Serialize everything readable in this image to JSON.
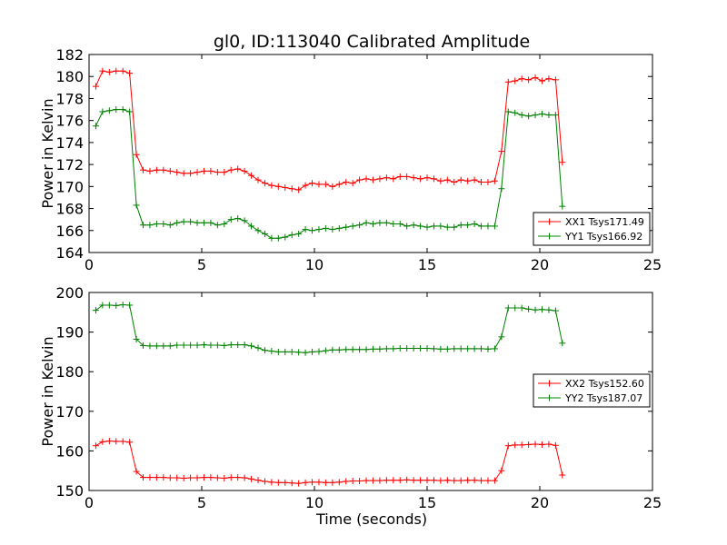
{
  "figure": {
    "title": "gl0, ID:113040 Calibrated Amplitude",
    "xlabel": "Time (seconds)"
  },
  "chart_data": [
    {
      "type": "line",
      "title": "gl0, ID:113040 Calibrated Amplitude",
      "xlabel": "",
      "ylabel": "Power in Kelvin",
      "xlim": [
        0,
        25
      ],
      "ylim": [
        164,
        182
      ],
      "xticks": [
        0,
        5,
        10,
        15,
        20,
        25
      ],
      "yticks": [
        164,
        166,
        168,
        170,
        172,
        174,
        176,
        178,
        180,
        182
      ],
      "grid": false,
      "legend_position": "lower-right",
      "series": [
        {
          "name": "XX1 Tsys171.49",
          "color": "#ff0000",
          "marker": "plus",
          "x": [
            0.3,
            0.6,
            0.9,
            1.2,
            1.5,
            1.8,
            2.1,
            2.4,
            2.7,
            3.0,
            3.3,
            3.6,
            3.9,
            4.2,
            4.5,
            4.8,
            5.1,
            5.4,
            5.7,
            6.0,
            6.3,
            6.6,
            6.9,
            7.2,
            7.5,
            7.8,
            8.1,
            8.4,
            8.7,
            9.0,
            9.3,
            9.6,
            9.9,
            10.2,
            10.5,
            10.8,
            11.1,
            11.4,
            11.7,
            12.0,
            12.3,
            12.6,
            12.9,
            13.2,
            13.5,
            13.8,
            14.1,
            14.4,
            14.7,
            15.0,
            15.3,
            15.6,
            15.9,
            16.2,
            16.5,
            16.8,
            17.1,
            17.4,
            17.7,
            18.0,
            18.3,
            18.6,
            18.9,
            19.2,
            19.5,
            19.8,
            20.1,
            20.4,
            20.7,
            21.0
          ],
          "y": [
            179.1,
            180.5,
            180.4,
            180.5,
            180.5,
            180.3,
            172.9,
            171.5,
            171.4,
            171.5,
            171.5,
            171.4,
            171.3,
            171.2,
            171.2,
            171.3,
            171.4,
            171.4,
            171.3,
            171.3,
            171.5,
            171.6,
            171.4,
            171.0,
            170.6,
            170.3,
            170.1,
            170.0,
            169.9,
            169.8,
            169.7,
            170.1,
            170.3,
            170.2,
            170.2,
            170.0,
            170.2,
            170.4,
            170.3,
            170.6,
            170.7,
            170.6,
            170.7,
            170.8,
            170.7,
            170.9,
            170.9,
            170.8,
            170.7,
            170.8,
            170.7,
            170.5,
            170.6,
            170.4,
            170.6,
            170.5,
            170.6,
            170.4,
            170.4,
            170.5,
            173.2,
            179.5,
            179.6,
            179.8,
            179.7,
            179.9,
            179.6,
            179.8,
            179.7,
            172.2
          ]
        },
        {
          "name": "YY1 Tsys166.92",
          "color": "#008000",
          "marker": "plus",
          "x": [
            0.3,
            0.6,
            0.9,
            1.2,
            1.5,
            1.8,
            2.1,
            2.4,
            2.7,
            3.0,
            3.3,
            3.6,
            3.9,
            4.2,
            4.5,
            4.8,
            5.1,
            5.4,
            5.7,
            6.0,
            6.3,
            6.6,
            6.9,
            7.2,
            7.5,
            7.8,
            8.1,
            8.4,
            8.7,
            9.0,
            9.3,
            9.6,
            9.9,
            10.2,
            10.5,
            10.8,
            11.1,
            11.4,
            11.7,
            12.0,
            12.3,
            12.6,
            12.9,
            13.2,
            13.5,
            13.8,
            14.1,
            14.4,
            14.7,
            15.0,
            15.3,
            15.6,
            15.9,
            16.2,
            16.5,
            16.8,
            17.1,
            17.4,
            17.7,
            18.0,
            18.3,
            18.6,
            18.9,
            19.2,
            19.5,
            19.8,
            20.1,
            20.4,
            20.7,
            21.0
          ],
          "y": [
            175.5,
            176.8,
            176.9,
            177.0,
            177.0,
            176.8,
            168.3,
            166.5,
            166.5,
            166.6,
            166.6,
            166.5,
            166.7,
            166.8,
            166.8,
            166.7,
            166.7,
            166.7,
            166.5,
            166.6,
            167.0,
            167.1,
            166.9,
            166.4,
            166.0,
            165.7,
            165.3,
            165.3,
            165.4,
            165.6,
            165.7,
            166.1,
            166.0,
            166.1,
            166.2,
            166.1,
            166.2,
            166.3,
            166.4,
            166.5,
            166.7,
            166.6,
            166.7,
            166.7,
            166.6,
            166.6,
            166.4,
            166.5,
            166.4,
            166.3,
            166.4,
            166.4,
            166.3,
            166.3,
            166.5,
            166.5,
            166.6,
            166.4,
            166.4,
            166.4,
            169.8,
            176.8,
            176.7,
            176.5,
            176.4,
            176.5,
            176.6,
            176.5,
            176.5,
            168.2
          ]
        }
      ]
    },
    {
      "type": "line",
      "title": "",
      "xlabel": "Time (seconds)",
      "ylabel": "Power in Kelvin",
      "xlim": [
        0,
        25
      ],
      "ylim": [
        150,
        200
      ],
      "xticks": [
        0,
        5,
        10,
        15,
        20,
        25
      ],
      "yticks": [
        150,
        160,
        170,
        180,
        190,
        200
      ],
      "grid": false,
      "legend_position": "center-right",
      "series": [
        {
          "name": "XX2 Tsys152.60",
          "color": "#ff0000",
          "marker": "plus",
          "x": [
            0.3,
            0.6,
            0.9,
            1.2,
            1.5,
            1.8,
            2.1,
            2.4,
            2.7,
            3.0,
            3.3,
            3.6,
            3.9,
            4.2,
            4.5,
            4.8,
            5.1,
            5.4,
            5.7,
            6.0,
            6.3,
            6.6,
            6.9,
            7.2,
            7.5,
            7.8,
            8.1,
            8.4,
            8.7,
            9.0,
            9.3,
            9.6,
            9.9,
            10.2,
            10.5,
            10.8,
            11.1,
            11.4,
            11.7,
            12.0,
            12.3,
            12.6,
            12.9,
            13.2,
            13.5,
            13.8,
            14.1,
            14.4,
            14.7,
            15.0,
            15.3,
            15.6,
            15.9,
            16.2,
            16.5,
            16.8,
            17.1,
            17.4,
            17.7,
            18.0,
            18.3,
            18.6,
            18.9,
            19.2,
            19.5,
            19.8,
            20.1,
            20.4,
            20.7,
            21.0
          ],
          "y": [
            161.3,
            162.3,
            162.5,
            162.4,
            162.4,
            162.2,
            154.8,
            153.3,
            153.3,
            153.3,
            153.3,
            153.2,
            153.2,
            153.1,
            153.2,
            153.2,
            153.3,
            153.3,
            153.2,
            153.1,
            153.3,
            153.3,
            153.2,
            152.9,
            152.6,
            152.3,
            152.1,
            152.0,
            152.0,
            151.9,
            151.8,
            152.0,
            152.1,
            152.1,
            152.0,
            152.0,
            152.1,
            152.3,
            152.4,
            152.4,
            152.5,
            152.5,
            152.5,
            152.6,
            152.6,
            152.6,
            152.7,
            152.6,
            152.6,
            152.6,
            152.6,
            152.5,
            152.6,
            152.5,
            152.5,
            152.6,
            152.6,
            152.5,
            152.5,
            152.5,
            155.0,
            161.3,
            161.5,
            161.5,
            161.6,
            161.7,
            161.6,
            161.7,
            161.4,
            153.9
          ]
        },
        {
          "name": "YY2 Tsys187.07",
          "color": "#008000",
          "marker": "plus",
          "x": [
            0.3,
            0.6,
            0.9,
            1.2,
            1.5,
            1.8,
            2.1,
            2.4,
            2.7,
            3.0,
            3.3,
            3.6,
            3.9,
            4.2,
            4.5,
            4.8,
            5.1,
            5.4,
            5.7,
            6.0,
            6.3,
            6.6,
            6.9,
            7.2,
            7.5,
            7.8,
            8.1,
            8.4,
            8.7,
            9.0,
            9.3,
            9.6,
            9.9,
            10.2,
            10.5,
            10.8,
            11.1,
            11.4,
            11.7,
            12.0,
            12.3,
            12.6,
            12.9,
            13.2,
            13.5,
            13.8,
            14.1,
            14.4,
            14.7,
            15.0,
            15.3,
            15.6,
            15.9,
            16.2,
            16.5,
            16.8,
            17.1,
            17.4,
            17.7,
            18.0,
            18.3,
            18.6,
            18.9,
            19.2,
            19.5,
            19.8,
            20.1,
            20.4,
            20.7,
            21.0
          ],
          "y": [
            195.5,
            196.8,
            196.8,
            196.7,
            196.9,
            196.8,
            188.2,
            186.6,
            186.5,
            186.5,
            186.5,
            186.5,
            186.7,
            186.7,
            186.7,
            186.7,
            186.8,
            186.7,
            186.7,
            186.6,
            186.8,
            186.8,
            186.8,
            186.5,
            186.0,
            185.4,
            185.2,
            185.0,
            185.0,
            185.0,
            184.9,
            184.8,
            185.0,
            185.1,
            185.3,
            185.5,
            185.5,
            185.6,
            185.6,
            185.6,
            185.6,
            185.7,
            185.7,
            185.8,
            185.8,
            185.9,
            185.9,
            185.9,
            185.9,
            185.9,
            185.8,
            185.7,
            185.7,
            185.8,
            185.8,
            185.8,
            185.8,
            185.8,
            185.7,
            185.8,
            188.8,
            196.1,
            196.1,
            196.1,
            195.8,
            195.6,
            195.7,
            195.6,
            195.4,
            187.2
          ]
        }
      ]
    }
  ]
}
